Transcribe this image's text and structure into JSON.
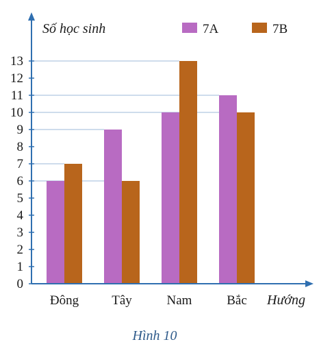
{
  "chart_data": {
    "type": "bar",
    "title": "",
    "ylabel": "Số học sinh",
    "xlabel": "Hướng",
    "caption": "Hình 10",
    "categories": [
      "Đông",
      "Tây",
      "Nam",
      "Bắc"
    ],
    "series": [
      {
        "name": "7A",
        "values": [
          6,
          9,
          10,
          11
        ],
        "color": "#b86bc2"
      },
      {
        "name": "7B",
        "values": [
          7,
          6,
          13,
          10
        ],
        "color": "#b8651c"
      }
    ],
    "y_ticks": [
      "0",
      "1",
      "2",
      "3",
      "4",
      "5",
      "6",
      "7",
      "8",
      "9",
      "10",
      "11",
      "12",
      "13"
    ],
    "ylim": [
      0,
      13
    ],
    "grid": "horizontal lines at bar tops",
    "legend": "top-right",
    "axis_color": "#2f6fb0"
  }
}
